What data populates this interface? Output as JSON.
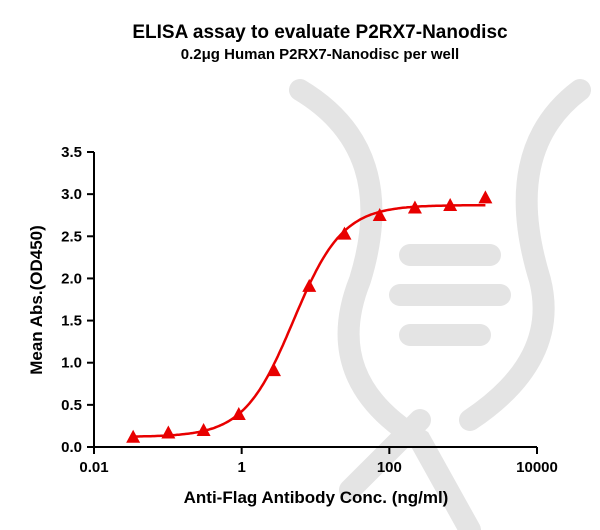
{
  "chart_data": {
    "type": "scatter",
    "title": "ELISA assay to evaluate P2RX7-Nanodisc",
    "subtitle": "0.2μg Human P2RX7-Nanodisc per well",
    "xlabel": "Anti-Flag Antibody Conc. (ng/ml)",
    "ylabel": "Mean Abs.(OD450)",
    "xscale": "log",
    "xlim": [
      0.01,
      10000
    ],
    "ylim": [
      0,
      3.5
    ],
    "xticks": [
      "0.01",
      "1",
      "100",
      "10000"
    ],
    "yticks": [
      "0.0",
      "0.5",
      "1.0",
      "1.5",
      "2.0",
      "2.5",
      "3.0",
      "3.5"
    ],
    "grid": false,
    "marker": "triangle",
    "fit_line": "sigmoidal",
    "color": "#e80000",
    "x": [
      0.0339,
      0.1016,
      0.305,
      0.914,
      2.74,
      8.23,
      24.69,
      74.07,
      222.2,
      666.7,
      2000
    ],
    "y": [
      0.11,
      0.16,
      0.19,
      0.38,
      0.9,
      1.9,
      2.52,
      2.74,
      2.83,
      2.86,
      2.95
    ]
  }
}
